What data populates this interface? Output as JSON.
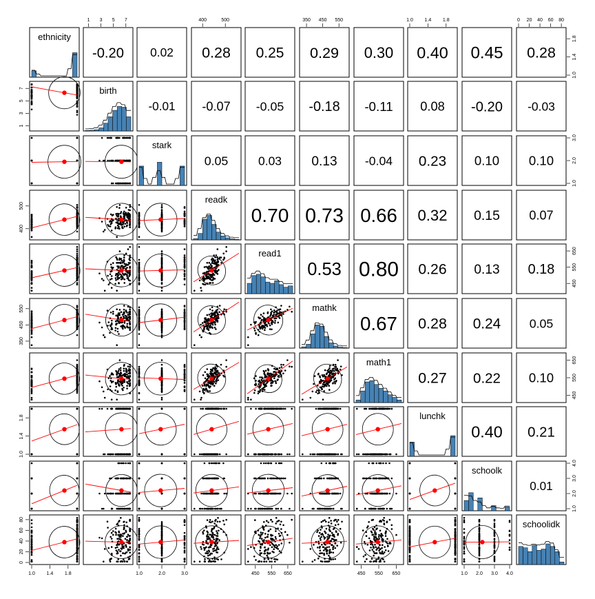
{
  "chart_data": {
    "type": "scatter-matrix",
    "variables": [
      "ethnicity",
      "birth",
      "stark",
      "readk",
      "read1",
      "mathk",
      "math1",
      "lunchk",
      "schoolk",
      "schoolidk"
    ],
    "correlations": [
      [
        null,
        -0.2,
        0.02,
        0.28,
        0.25,
        0.29,
        0.3,
        0.4,
        0.45,
        0.28
      ],
      [
        null,
        null,
        -0.01,
        -0.07,
        -0.05,
        -0.18,
        -0.11,
        0.08,
        -0.2,
        -0.03
      ],
      [
        null,
        null,
        null,
        0.05,
        0.03,
        0.13,
        -0.04,
        0.23,
        0.1,
        0.1
      ],
      [
        null,
        null,
        null,
        null,
        0.7,
        0.73,
        0.66,
        0.32,
        0.15,
        0.07
      ],
      [
        null,
        null,
        null,
        null,
        null,
        0.53,
        0.8,
        0.26,
        0.13,
        0.18
      ],
      [
        null,
        null,
        null,
        null,
        null,
        null,
        0.67,
        0.28,
        0.24,
        0.05
      ],
      [
        null,
        null,
        null,
        null,
        null,
        null,
        null,
        0.27,
        0.22,
        0.1
      ],
      [
        null,
        null,
        null,
        null,
        null,
        null,
        null,
        null,
        0.4,
        0.21
      ],
      [
        null,
        null,
        null,
        null,
        null,
        null,
        null,
        null,
        null,
        0.01
      ]
    ],
    "correlation_labels": [
      [
        "-0.20",
        "0.02",
        "0.28",
        "0.25",
        "0.29",
        "0.30",
        "0.40",
        "0.45",
        "0.28"
      ],
      [
        "-0.01",
        "-0.07",
        "-0.05",
        "-0.18",
        "-0.11",
        "0.08",
        "-0.20",
        "-0.03"
      ],
      [
        "0.05",
        "0.03",
        "0.13",
        "-0.04",
        "0.23",
        "0.10",
        "0.10"
      ],
      [
        "0.70",
        "0.73",
        "0.66",
        "0.32",
        "0.15",
        "0.07"
      ],
      [
        "0.53",
        "0.80",
        "0.26",
        "0.13",
        "0.18"
      ],
      [
        "0.67",
        "0.28",
        "0.24",
        "0.05"
      ],
      [
        "0.27",
        "0.22",
        "0.10"
      ],
      [
        "0.40",
        "0.21"
      ],
      [
        "0.01"
      ]
    ],
    "ranges": [
      [
        1,
        2
      ],
      [
        0.5,
        7.8
      ],
      [
        1,
        3
      ],
      [
        360,
        560
      ],
      [
        400,
        680
      ],
      [
        320,
        600
      ],
      [
        420,
        680
      ],
      [
        1,
        2
      ],
      [
        1,
        4
      ],
      [
        0,
        85
      ]
    ],
    "axis_ticks": {
      "top": [
        {
          "var": 1,
          "ticks": [
            "1",
            "3",
            "5",
            "7"
          ]
        },
        {
          "var": 3,
          "ticks": [
            "400",
            "500"
          ]
        },
        {
          "var": 5,
          "ticks": [
            "350",
            "450",
            "550"
          ]
        },
        {
          "var": 7,
          "ticks": [
            "1.0",
            "1.4",
            "1.8"
          ]
        },
        {
          "var": 9,
          "ticks": [
            "0",
            "20",
            "40",
            "60",
            "80"
          ]
        }
      ],
      "right": [
        {
          "var": 0,
          "ticks": [
            "1.0",
            "1.4",
            "1.8"
          ]
        },
        {
          "var": 2,
          "ticks": [
            "1.0",
            "2.0",
            "3.0"
          ]
        },
        {
          "var": 4,
          "ticks": [
            "450",
            "550",
            "650"
          ]
        },
        {
          "var": 6,
          "ticks": [
            "450",
            "550",
            "650"
          ]
        },
        {
          "var": 8,
          "ticks": [
            "1.0",
            "2.0",
            "3.0",
            "4.0"
          ]
        }
      ],
      "bottom": [
        {
          "var": 0,
          "ticks": [
            "1.0",
            "1.4",
            "1.8"
          ]
        },
        {
          "var": 2,
          "ticks": [
            "1.0",
            "2.0",
            "3.0"
          ]
        },
        {
          "var": 4,
          "ticks": [
            "450",
            "550",
            "650"
          ]
        },
        {
          "var": 6,
          "ticks": [
            "450",
            "550",
            "650"
          ]
        },
        {
          "var": 8,
          "ticks": [
            "1.0",
            "2.0",
            "3.0",
            "4.0"
          ]
        }
      ],
      "left": [
        {
          "var": 1,
          "ticks": [
            "1",
            "3",
            "5",
            "7"
          ]
        },
        {
          "var": 3,
          "ticks": [
            "400",
            "500"
          ]
        },
        {
          "var": 5,
          "ticks": [
            "350",
            "450",
            "550"
          ]
        },
        {
          "var": 7,
          "ticks": [
            "1.0",
            "1.4",
            "1.8"
          ]
        },
        {
          "var": 9,
          "ticks": [
            "0",
            "20",
            "40",
            "60",
            "80"
          ]
        }
      ]
    },
    "histograms": [
      [
        0.25,
        0,
        0,
        0,
        0,
        0,
        0,
        0,
        0,
        0.95
      ],
      [
        0.02,
        0.03,
        0.05,
        0.12,
        0.3,
        0.55,
        0.8,
        0.95,
        0.92,
        0.55
      ],
      [
        0.75,
        0,
        0,
        0,
        0.9,
        0,
        0,
        0,
        0,
        0.75
      ],
      [
        0.05,
        0.25,
        0.8,
        0.95,
        0.6,
        0.3,
        0.15,
        0.08,
        0.04,
        0.02
      ],
      [
        0.4,
        0.7,
        0.75,
        0.65,
        0.45,
        0.4,
        0.5,
        0.35,
        0.25,
        0.3
      ],
      [
        0.05,
        0.15,
        0.55,
        0.9,
        0.85,
        0.45,
        0.2,
        0.08,
        0.04,
        0.02
      ],
      [
        0.1,
        0.45,
        0.8,
        0.85,
        0.7,
        0.55,
        0.45,
        0.3,
        0.2,
        0.1
      ],
      [
        0.55,
        0,
        0,
        0,
        0,
        0,
        0,
        0,
        0,
        0.8
      ],
      [
        0.4,
        0.7,
        0,
        0.5,
        0,
        0,
        0.2,
        0,
        0,
        0.15
      ],
      [
        0.7,
        0.65,
        0.5,
        0.75,
        0.55,
        0.6,
        0.8,
        0.7,
        0.5,
        0.1
      ]
    ],
    "means": [
      1.72,
      6.3,
      1.95,
      440,
      530,
      480,
      545,
      1.55,
      2.2,
      38
    ],
    "colors": {
      "histogram": "#4682b4",
      "smooth": "#ff0000",
      "mean_point": "#ff0000",
      "points": "#000000",
      "box": "#000000"
    }
  }
}
